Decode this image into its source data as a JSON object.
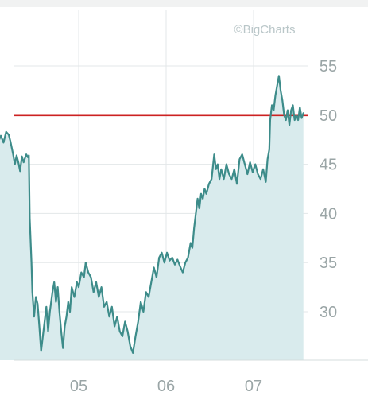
{
  "watermark": "©BigCharts",
  "chart_data": {
    "type": "area",
    "title": "",
    "xlabel": "",
    "ylabel": "",
    "x_tick_labels": [
      "05",
      "06",
      "07"
    ],
    "x_ticks": [
      2005.0,
      2006.0,
      2007.0
    ],
    "xlim": [
      2004.05,
      2007.65
    ],
    "y_tick_labels": [
      "55",
      "50",
      "45",
      "40",
      "35",
      "30"
    ],
    "y_ticks": [
      55,
      50,
      45,
      40,
      35,
      30
    ],
    "ylim": [
      24.5,
      58.5
    ],
    "y_axis_side": "right",
    "grid": true,
    "reference_line": {
      "value": 50,
      "color": "#cc2222"
    },
    "series": [
      {
        "color": "#3d8c8a",
        "fill": "#d9ebed",
        "points": [
          [
            2004.05,
            46.8
          ],
          [
            2004.08,
            47.3
          ],
          [
            2004.11,
            47.9
          ],
          [
            2004.14,
            47.2
          ],
          [
            2004.17,
            48.3
          ],
          [
            2004.2,
            48.0
          ],
          [
            2004.22,
            47.3
          ],
          [
            2004.25,
            46.0
          ],
          [
            2004.27,
            45.0
          ],
          [
            2004.29,
            45.9
          ],
          [
            2004.31,
            45.2
          ],
          [
            2004.33,
            44.3
          ],
          [
            2004.35,
            45.8
          ],
          [
            2004.37,
            45.2
          ],
          [
            2004.4,
            46.0
          ],
          [
            2004.42,
            45.7
          ],
          [
            2004.43,
            45.9
          ],
          [
            2004.44,
            39.5
          ],
          [
            2004.46,
            35.0
          ],
          [
            2004.47,
            32.0
          ],
          [
            2004.49,
            29.5
          ],
          [
            2004.51,
            31.5
          ],
          [
            2004.53,
            30.8
          ],
          [
            2004.55,
            28.5
          ],
          [
            2004.57,
            26.0
          ],
          [
            2004.59,
            27.5
          ],
          [
            2004.61,
            29.0
          ],
          [
            2004.63,
            30.5
          ],
          [
            2004.65,
            28.0
          ],
          [
            2004.67,
            30.0
          ],
          [
            2004.7,
            32.0
          ],
          [
            2004.72,
            33.0
          ],
          [
            2004.74,
            31.0
          ],
          [
            2004.76,
            32.5
          ],
          [
            2004.78,
            30.0
          ],
          [
            2004.8,
            28.0
          ],
          [
            2004.82,
            26.3
          ],
          [
            2004.84,
            28.5
          ],
          [
            2004.86,
            29.5
          ],
          [
            2004.88,
            31.0
          ],
          [
            2004.9,
            30.0
          ],
          [
            2004.92,
            32.5
          ],
          [
            2004.95,
            31.5
          ],
          [
            2004.98,
            33.0
          ],
          [
            2005.0,
            32.5
          ],
          [
            2005.03,
            34.0
          ],
          [
            2005.06,
            33.5
          ],
          [
            2005.08,
            35.0
          ],
          [
            2005.11,
            34.0
          ],
          [
            2005.14,
            33.5
          ],
          [
            2005.17,
            32.0
          ],
          [
            2005.2,
            33.0
          ],
          [
            2005.23,
            31.5
          ],
          [
            2005.26,
            32.5
          ],
          [
            2005.29,
            30.5
          ],
          [
            2005.32,
            31.0
          ],
          [
            2005.35,
            29.5
          ],
          [
            2005.38,
            30.5
          ],
          [
            2005.41,
            28.5
          ],
          [
            2005.44,
            29.5
          ],
          [
            2005.47,
            28.0
          ],
          [
            2005.5,
            27.5
          ],
          [
            2005.53,
            29.0
          ],
          [
            2005.56,
            28.0
          ],
          [
            2005.59,
            26.5
          ],
          [
            2005.62,
            25.8
          ],
          [
            2005.65,
            27.5
          ],
          [
            2005.68,
            29.0
          ],
          [
            2005.71,
            31.0
          ],
          [
            2005.74,
            30.0
          ],
          [
            2005.77,
            32.0
          ],
          [
            2005.8,
            31.5
          ],
          [
            2005.83,
            33.0
          ],
          [
            2005.86,
            34.5
          ],
          [
            2005.89,
            33.5
          ],
          [
            2005.92,
            35.5
          ],
          [
            2005.95,
            36.0
          ],
          [
            2005.98,
            35.0
          ],
          [
            2006.01,
            36.0
          ],
          [
            2006.04,
            35.2
          ],
          [
            2006.07,
            35.5
          ],
          [
            2006.1,
            34.8
          ],
          [
            2006.13,
            35.3
          ],
          [
            2006.16,
            34.6
          ],
          [
            2006.19,
            34.0
          ],
          [
            2006.22,
            35.0
          ],
          [
            2006.25,
            35.5
          ],
          [
            2006.28,
            37.0
          ],
          [
            2006.3,
            36.5
          ],
          [
            2006.32,
            38.5
          ],
          [
            2006.34,
            40.0
          ],
          [
            2006.36,
            41.5
          ],
          [
            2006.38,
            40.5
          ],
          [
            2006.4,
            42.0
          ],
          [
            2006.42,
            41.5
          ],
          [
            2006.44,
            42.5
          ],
          [
            2006.46,
            42.0
          ],
          [
            2006.49,
            43.0
          ],
          [
            2006.52,
            43.5
          ],
          [
            2006.55,
            46.0
          ],
          [
            2006.57,
            44.5
          ],
          [
            2006.59,
            45.0
          ],
          [
            2006.61,
            43.5
          ],
          [
            2006.63,
            44.5
          ],
          [
            2006.66,
            43.5
          ],
          [
            2006.69,
            45.0
          ],
          [
            2006.72,
            44.0
          ],
          [
            2006.75,
            43.5
          ],
          [
            2006.78,
            44.5
          ],
          [
            2006.81,
            43.0
          ],
          [
            2006.84,
            45.5
          ],
          [
            2006.87,
            46.0
          ],
          [
            2006.9,
            45.0
          ],
          [
            2006.93,
            44.0
          ],
          [
            2006.96,
            45.2
          ],
          [
            2006.99,
            44.2
          ],
          [
            2007.02,
            45.0
          ],
          [
            2007.05,
            44.0
          ],
          [
            2007.08,
            43.5
          ],
          [
            2007.11,
            44.5
          ],
          [
            2007.14,
            43.2
          ],
          [
            2007.16,
            45.5
          ],
          [
            2007.18,
            46.5
          ],
          [
            2007.19,
            49.5
          ],
          [
            2007.21,
            51.0
          ],
          [
            2007.23,
            50.5
          ],
          [
            2007.25,
            52.0
          ],
          [
            2007.27,
            53.0
          ],
          [
            2007.29,
            54.0
          ],
          [
            2007.31,
            52.5
          ],
          [
            2007.33,
            51.5
          ],
          [
            2007.35,
            50.0
          ],
          [
            2007.37,
            49.5
          ],
          [
            2007.39,
            50.5
          ],
          [
            2007.41,
            49.0
          ],
          [
            2007.43,
            50.5
          ],
          [
            2007.45,
            51.0
          ],
          [
            2007.47,
            49.5
          ],
          [
            2007.49,
            50.0
          ],
          [
            2007.51,
            49.5
          ],
          [
            2007.53,
            50.8
          ],
          [
            2007.55,
            49.7
          ],
          [
            2007.57,
            50.2
          ]
        ]
      }
    ]
  }
}
